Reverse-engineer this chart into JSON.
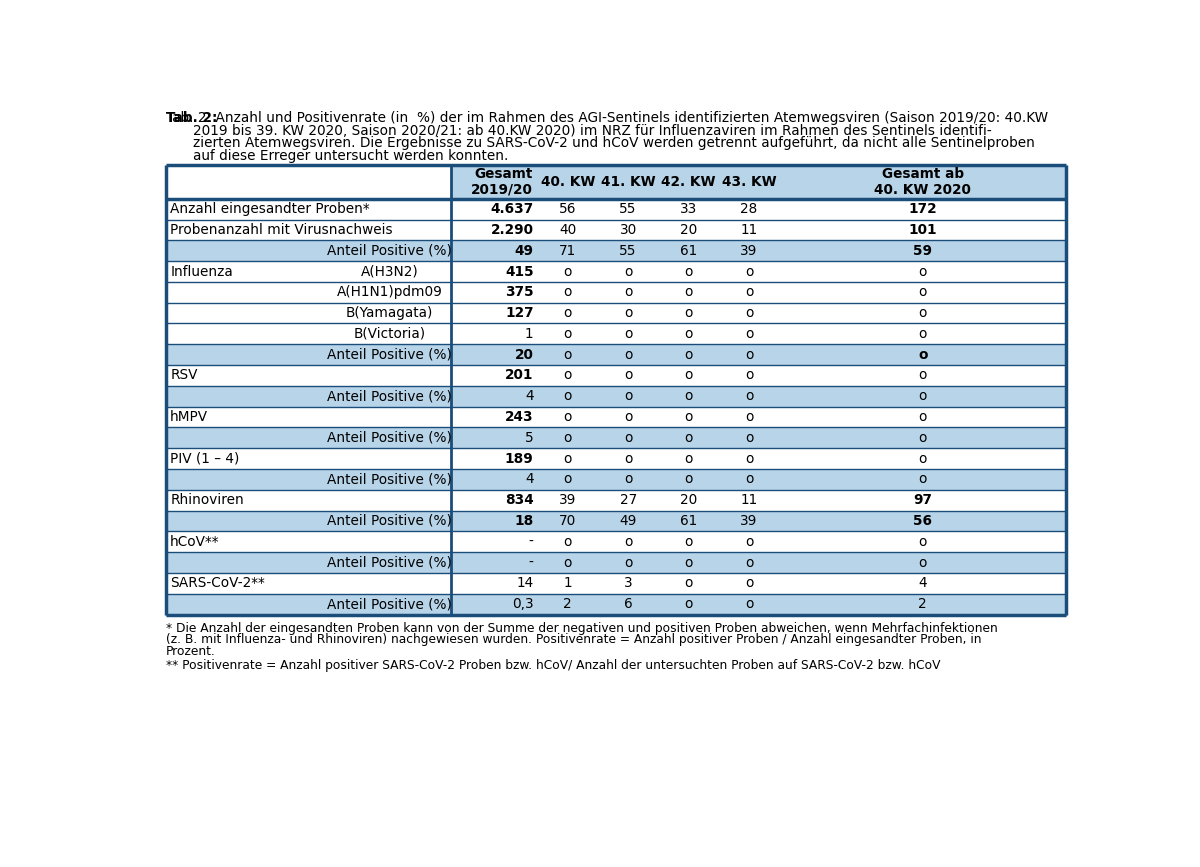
{
  "title_bold": "Tab. 2:",
  "title_rest_lines": [
    "Anzahl und Positivenrate (in  %) der im Rahmen des AGI-Sentinels identifizierten Atemwegsviren (Saison 2019/20: 40.KW",
    "2019 bis 39. KW 2020, Saison 2020/21: ab 40.KW 2020) im NRZ für Influenzaviren im Rahmen des Sentinels identifi-",
    "zierten Atemwegsviren. Die Ergebnisse zu SARS-CoV-2 und hCoV werden getrennt aufgeführt, da nicht alle Sentinelproben",
    "auf diese Erreger untersucht werden konnten."
  ],
  "footnote1_lines": [
    "* Die Anzahl der eingesandten Proben kann von der Summe der negativen und positiven Proben abweichen, wenn Mehrfachinfektionen",
    "(z. B. mit Influenza- und Rhinoviren) nachgewiesen wurden. Positivenrate = Anzahl positiver Proben / Anzahl eingesandter Proben, in",
    "Prozent."
  ],
  "footnote2": "** Positivenrate = Anzahl positiver SARS-CoV-2 Proben bzw. hCoV/ Anzahl der untersuchten Proben auf SARS-CoV-2 bzw. hCoV",
  "rows": [
    {
      "col1": "Anzahl eingesandter Proben*",
      "col2": "",
      "gesamt": "4.637",
      "kw40": "56",
      "kw41": "55",
      "kw42": "33",
      "kw43": "28",
      "gesamt2": "172",
      "bg": "white",
      "bold_g": true,
      "bold_last": true
    },
    {
      "col1": "Probenanzahl mit Virusnachweis",
      "col2": "",
      "gesamt": "2.290",
      "kw40": "40",
      "kw41": "30",
      "kw42": "20",
      "kw43": "11",
      "gesamt2": "101",
      "bg": "white",
      "bold_g": true,
      "bold_last": true
    },
    {
      "col1": "",
      "col2": "Anteil Positive (%)",
      "gesamt": "49",
      "kw40": "71",
      "kw41": "55",
      "kw42": "61",
      "kw43": "39",
      "gesamt2": "59",
      "bg": "#b8d4e8",
      "bold_g": true,
      "bold_last": true
    },
    {
      "col1": "Influenza",
      "col2": "A(H3N2)",
      "gesamt": "415",
      "kw40": "o",
      "kw41": "o",
      "kw42": "o",
      "kw43": "o",
      "gesamt2": "o",
      "bg": "white",
      "bold_g": true,
      "bold_last": false
    },
    {
      "col1": "",
      "col2": "A(H1N1)pdm09",
      "gesamt": "375",
      "kw40": "o",
      "kw41": "o",
      "kw42": "o",
      "kw43": "o",
      "gesamt2": "o",
      "bg": "white",
      "bold_g": true,
      "bold_last": false
    },
    {
      "col1": "",
      "col2": "B(Yamagata)",
      "gesamt": "127",
      "kw40": "o",
      "kw41": "o",
      "kw42": "o",
      "kw43": "o",
      "gesamt2": "o",
      "bg": "white",
      "bold_g": true,
      "bold_last": false
    },
    {
      "col1": "",
      "col2": "B(Victoria)",
      "gesamt": "1",
      "kw40": "o",
      "kw41": "o",
      "kw42": "o",
      "kw43": "o",
      "gesamt2": "o",
      "bg": "white",
      "bold_g": false,
      "bold_last": false
    },
    {
      "col1": "",
      "col2": "Anteil Positive (%)",
      "gesamt": "20",
      "kw40": "o",
      "kw41": "o",
      "kw42": "o",
      "kw43": "o",
      "gesamt2": "o",
      "bg": "#b8d4e8",
      "bold_g": true,
      "bold_last": true
    },
    {
      "col1": "RSV",
      "col2": "",
      "gesamt": "201",
      "kw40": "o",
      "kw41": "o",
      "kw42": "o",
      "kw43": "o",
      "gesamt2": "o",
      "bg": "white",
      "bold_g": true,
      "bold_last": false
    },
    {
      "col1": "",
      "col2": "Anteil Positive (%)",
      "gesamt": "4",
      "kw40": "o",
      "kw41": "o",
      "kw42": "o",
      "kw43": "o",
      "gesamt2": "o",
      "bg": "#b8d4e8",
      "bold_g": false,
      "bold_last": false
    },
    {
      "col1": "hMPV",
      "col2": "",
      "gesamt": "243",
      "kw40": "o",
      "kw41": "o",
      "kw42": "o",
      "kw43": "o",
      "gesamt2": "o",
      "bg": "white",
      "bold_g": true,
      "bold_last": false
    },
    {
      "col1": "",
      "col2": "Anteil Positive (%)",
      "gesamt": "5",
      "kw40": "o",
      "kw41": "o",
      "kw42": "o",
      "kw43": "o",
      "gesamt2": "o",
      "bg": "#b8d4e8",
      "bold_g": false,
      "bold_last": false
    },
    {
      "col1": "PIV (1 – 4)",
      "col2": "",
      "gesamt": "189",
      "kw40": "o",
      "kw41": "o",
      "kw42": "o",
      "kw43": "o",
      "gesamt2": "o",
      "bg": "white",
      "bold_g": true,
      "bold_last": false
    },
    {
      "col1": "",
      "col2": "Anteil Positive (%)",
      "gesamt": "4",
      "kw40": "o",
      "kw41": "o",
      "kw42": "o",
      "kw43": "o",
      "gesamt2": "o",
      "bg": "#b8d4e8",
      "bold_g": false,
      "bold_last": false
    },
    {
      "col1": "Rhinoviren",
      "col2": "",
      "gesamt": "834",
      "kw40": "39",
      "kw41": "27",
      "kw42": "20",
      "kw43": "11",
      "gesamt2": "97",
      "bg": "white",
      "bold_g": true,
      "bold_last": true
    },
    {
      "col1": "",
      "col2": "Anteil Positive (%)",
      "gesamt": "18",
      "kw40": "70",
      "kw41": "49",
      "kw42": "61",
      "kw43": "39",
      "gesamt2": "56",
      "bg": "#b8d4e8",
      "bold_g": true,
      "bold_last": true
    },
    {
      "col1": "hCoV**",
      "col2": "",
      "gesamt": "-",
      "kw40": "o",
      "kw41": "o",
      "kw42": "o",
      "kw43": "o",
      "gesamt2": "o",
      "bg": "white",
      "bold_g": false,
      "bold_last": false
    },
    {
      "col1": "",
      "col2": "Anteil Positive (%)",
      "gesamt": "-",
      "kw40": "o",
      "kw41": "o",
      "kw42": "o",
      "kw43": "o",
      "gesamt2": "o",
      "bg": "#b8d4e8",
      "bold_g": false,
      "bold_last": false
    },
    {
      "col1": "SARS-CoV-2**",
      "col2": "",
      "gesamt": "14",
      "kw40": "1",
      "kw41": "3",
      "kw42": "o",
      "kw43": "o",
      "gesamt2": "4",
      "bg": "white",
      "bold_g": false,
      "bold_last": false
    },
    {
      "col1": "",
      "col2": "Anteil Positive (%)",
      "gesamt": "0,3",
      "kw40": "2",
      "kw41": "6",
      "kw42": "o",
      "kw43": "o",
      "gesamt2": "2",
      "bg": "#b8d4e8",
      "bold_g": false,
      "bold_last": false
    }
  ],
  "border_color": "#1a4d7a",
  "bg_blue": "#b8d4e8",
  "bg_white": "#ffffff"
}
